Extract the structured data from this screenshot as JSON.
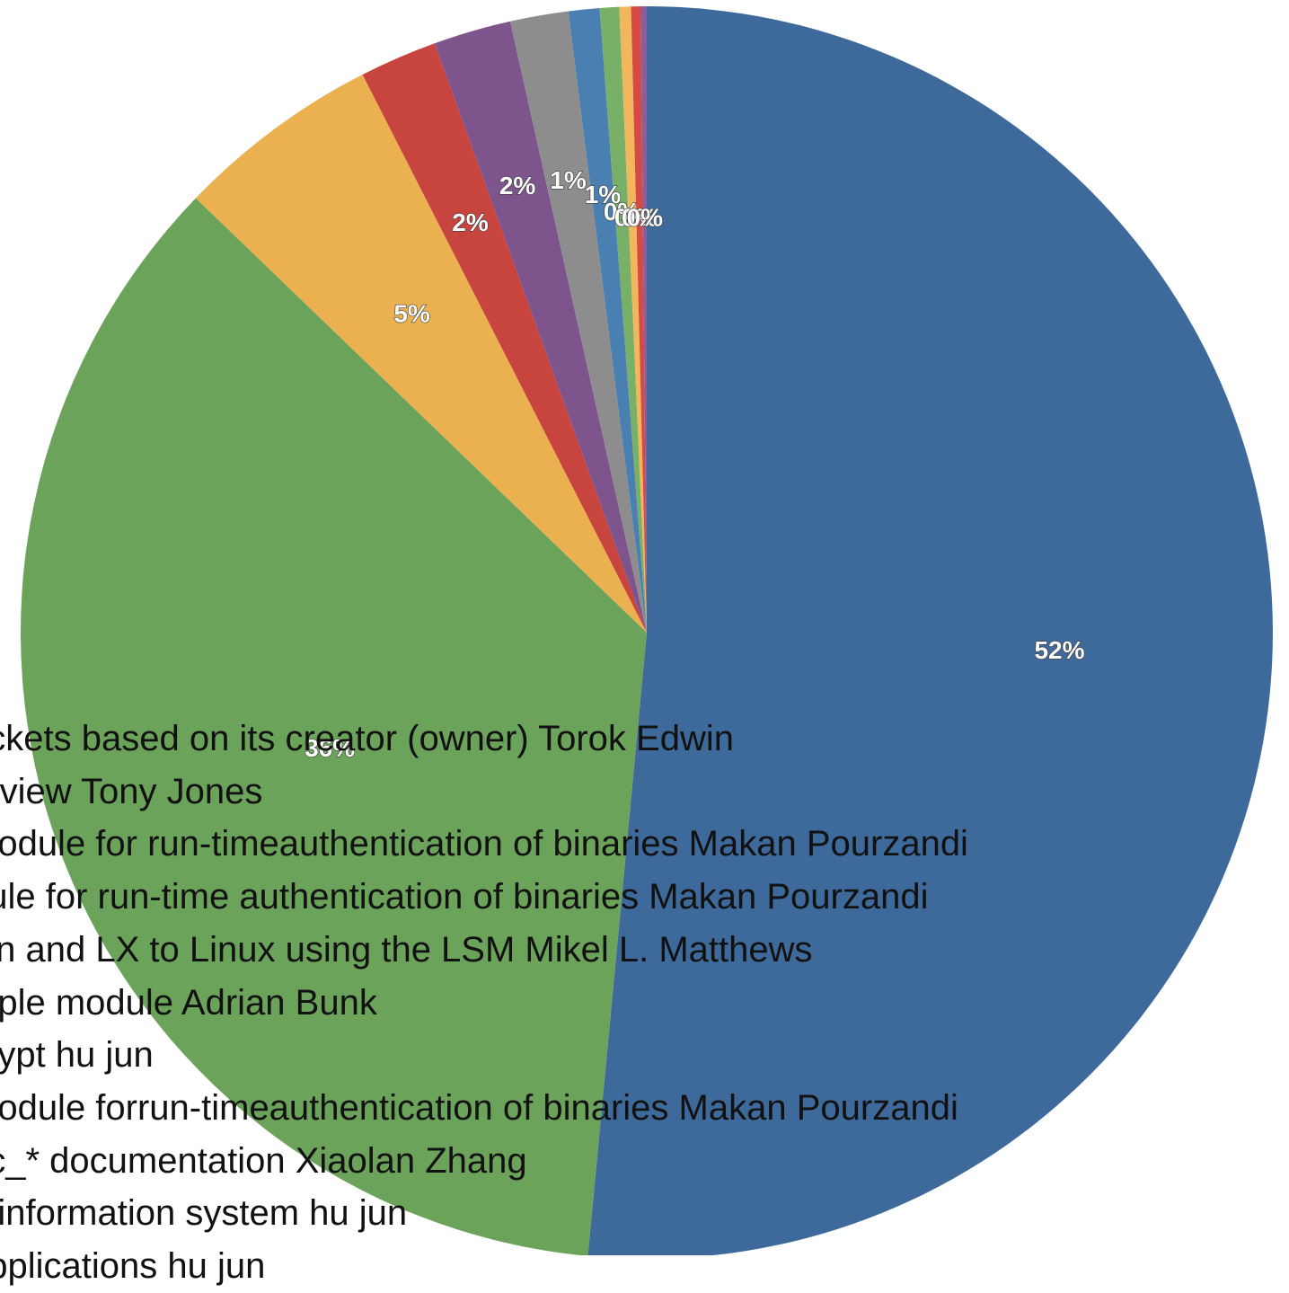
{
  "chart_data": {
    "type": "pie",
    "title": "",
    "colors": [
      "#3d6a9b",
      "#6ca35a",
      "#ebb04f",
      "#c8443f",
      "#7e548d",
      "#8d8d8d",
      "#4a7fb2",
      "#78b067",
      "#f2b65c",
      "#d44a44",
      "#8a5d9b"
    ],
    "slices": [
      {
        "value": 51.5,
        "label": "52%"
      },
      {
        "value": 35.7,
        "label": "36%"
      },
      {
        "value": 5.3,
        "label": "5%"
      },
      {
        "value": 2.0,
        "label": "2%"
      },
      {
        "value": 2.0,
        "label": "2%"
      },
      {
        "value": 1.5,
        "label": "1%"
      },
      {
        "value": 0.8,
        "label": "1%"
      },
      {
        "value": 0.5,
        "label": "0%"
      },
      {
        "value": 0.3,
        "label": "0%"
      },
      {
        "value": 0.25,
        "label": "0%"
      },
      {
        "value": 0.15,
        "label": "0%"
      }
    ],
    "legend_entries": [
      "ockets based on its creator (owner) Torok Edwin",
      "erview Tony Jones",
      " module for run-timeauthentication of binaries Makan Pourzandi",
      "dule for run-time authentication of binaries Makan Pourzandi",
      "ion and LX to Linux using the LSM Mikel L. Matthews",
      "mple module Adrian Bunk",
      " crypt hu jun",
      " module forrun-timeauthentication of binaries Makan Pourzandi",
      "ec_* documentation Xiaolan Zhang",
      "g information system hu jun",
      "applications hu jun"
    ]
  }
}
